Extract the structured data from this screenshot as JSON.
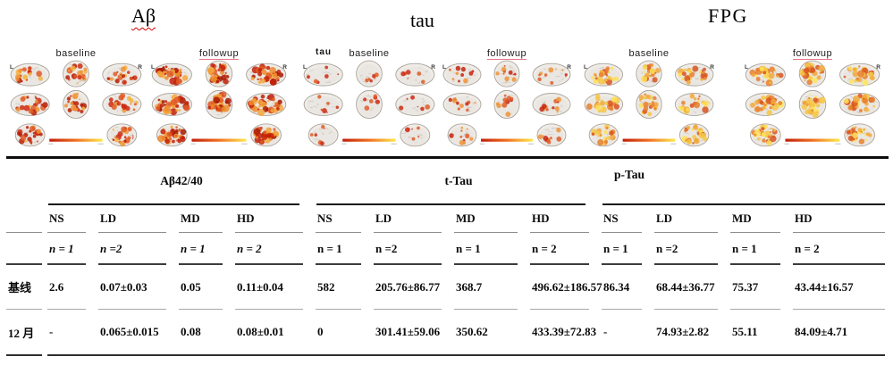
{
  "figure": {
    "titles": [
      "Aβ",
      "tau",
      "FPG"
    ],
    "tau_corner_label": "tau",
    "side_left": "L",
    "side_right": "R",
    "panels": [
      {
        "label": "baseline"
      },
      {
        "label": "followup"
      },
      {
        "label": "baseline"
      },
      {
        "label": "followup"
      },
      {
        "label": "baseline"
      },
      {
        "label": "followup"
      }
    ]
  },
  "table": {
    "groups": [
      {
        "label": "Aβ42/40"
      },
      {
        "label": "t-Tau"
      },
      {
        "label": "p-Tau"
      }
    ],
    "col_headers": [
      "NS",
      "LD",
      "MD",
      "HD",
      "NS",
      "LD",
      "MD",
      "HD",
      "NS",
      "LD",
      "MD",
      "HD"
    ],
    "n_values": [
      "n = 1",
      "n =2",
      "n = 1",
      "n = 2",
      "n = 1",
      "n =2",
      "n = 1",
      "n = 2",
      "n = 1",
      "n =2",
      "n = 1",
      "n = 2"
    ],
    "rows": [
      {
        "label": "基线",
        "values": [
          "2.6",
          "0.07±0.03",
          "0.05",
          "0.11±0.04",
          "582",
          "205.76±86.77",
          "368.7",
          "496.62±186.57",
          "86.34",
          "68.44±36.77",
          "75.37",
          "43.44±16.57"
        ]
      },
      {
        "label": "12 月",
        "values": [
          "-",
          "0.065±0.015",
          "0.08",
          "0.08±0.01",
          "0",
          "301.41±59.06",
          "350.62",
          "433.39±72.83",
          "-",
          "74.93±2.82",
          "55.11",
          "84.09±4.71"
        ]
      }
    ]
  },
  "colors": {
    "hot_scale_start": "#c01e08",
    "hot_scale_mid": "#f07020",
    "hot_scale_end": "#ffe84d",
    "followup_underline": "#e8738a",
    "spellcheck_underline": "#d40000"
  }
}
